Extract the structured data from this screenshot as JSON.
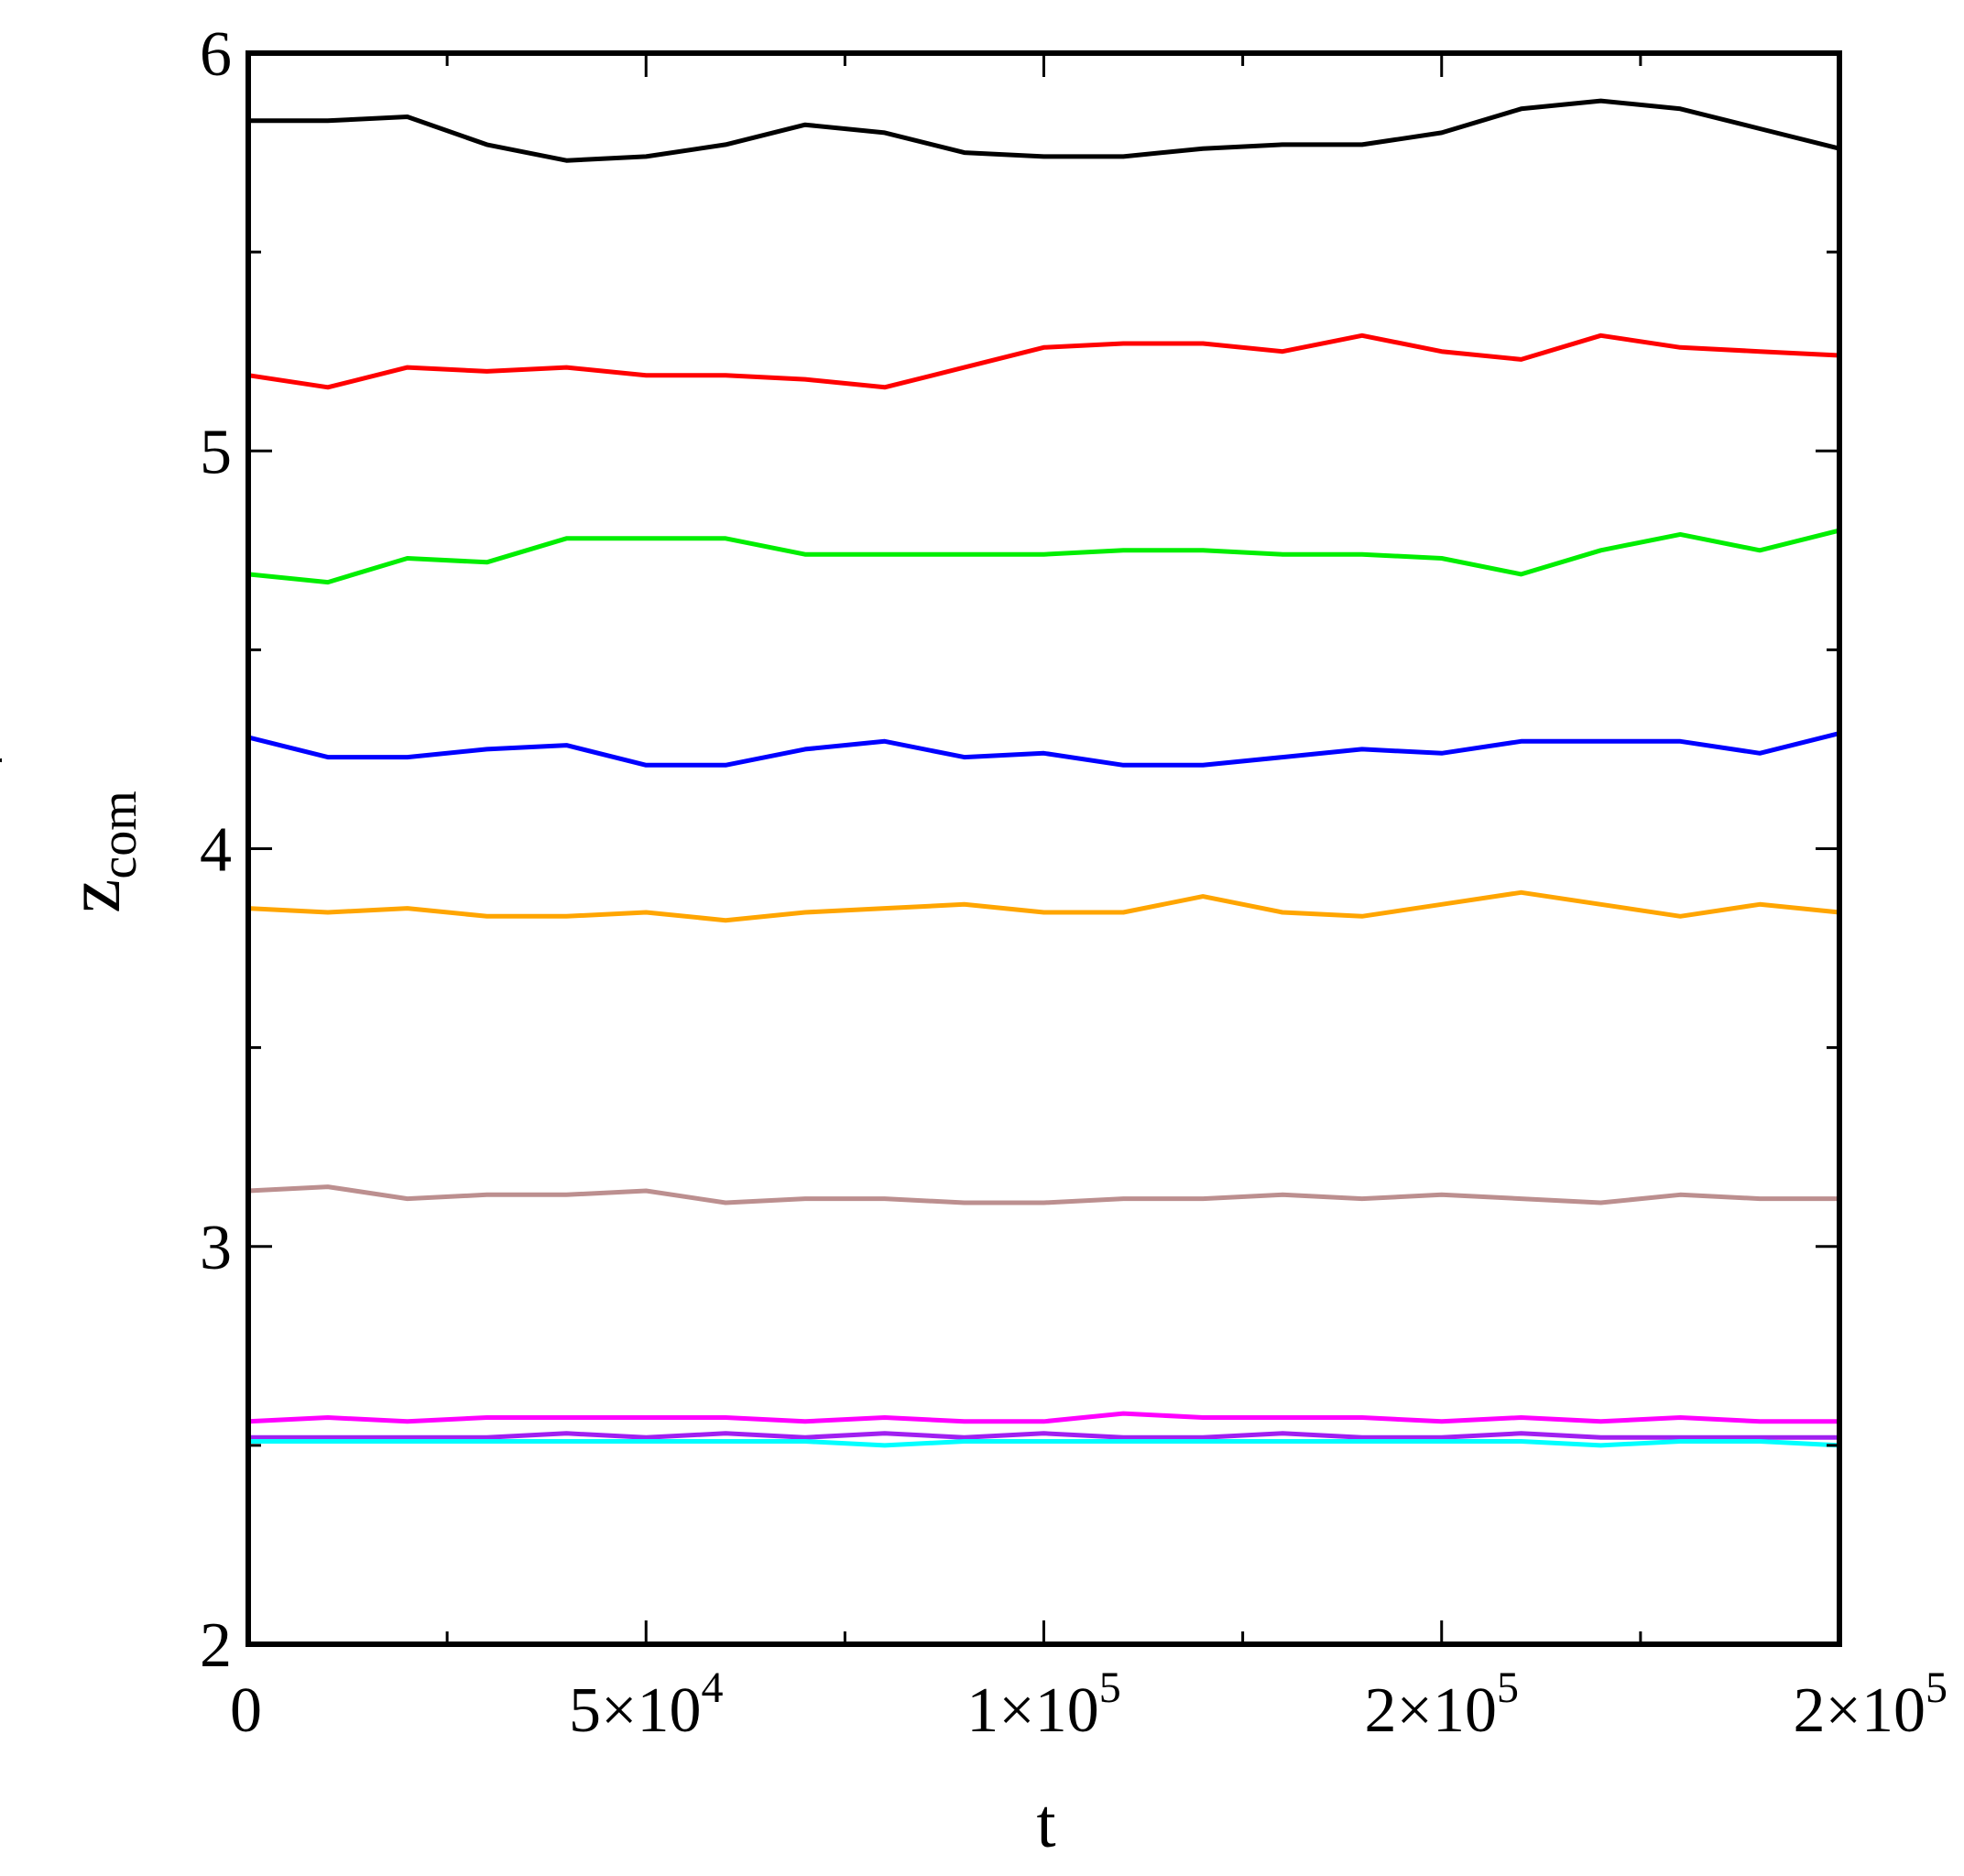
{
  "chart_data": {
    "type": "line",
    "title": "",
    "xlabel": "t",
    "ylabel": {
      "base": "z",
      "superscript": "*",
      "subscript": "com"
    },
    "xlim": [
      0,
      200000
    ],
    "ylim": [
      2,
      6
    ],
    "x_ticks": [
      {
        "value": 0,
        "base": "0",
        "exp": ""
      },
      {
        "value": 50000,
        "base": "5×10",
        "exp": "4"
      },
      {
        "value": 100000,
        "base": "1×10",
        "exp": "5"
      },
      {
        "value": 150000,
        "base": "2×10",
        "exp": "5"
      },
      {
        "value": 200000,
        "base": "2×10",
        "exp": "5"
      }
    ],
    "x_minor_ticks": [
      25000,
      75000,
      125000,
      175000
    ],
    "y_ticks": [
      {
        "value": 2,
        "label": "2"
      },
      {
        "value": 3,
        "label": "3"
      },
      {
        "value": 4,
        "label": "4"
      },
      {
        "value": 5,
        "label": "5"
      },
      {
        "value": 6,
        "label": "6"
      }
    ],
    "y_minor_ticks": [
      2.5,
      3.5,
      4.5,
      5.5
    ],
    "grid": false,
    "legend": "none",
    "x": [
      0,
      10000,
      20000,
      30000,
      40000,
      50000,
      60000,
      70000,
      80000,
      90000,
      100000,
      110000,
      120000,
      130000,
      140000,
      150000,
      160000,
      170000,
      180000,
      190000,
      200000
    ],
    "series": [
      {
        "color": "#000000",
        "values": [
          5.83,
          5.83,
          5.84,
          5.77,
          5.73,
          5.74,
          5.77,
          5.82,
          5.8,
          5.75,
          5.74,
          5.74,
          5.76,
          5.77,
          5.77,
          5.8,
          5.86,
          5.88,
          5.86,
          5.81,
          5.76
        ]
      },
      {
        "color": "#ff0000",
        "values": [
          5.19,
          5.16,
          5.21,
          5.2,
          5.21,
          5.19,
          5.19,
          5.18,
          5.16,
          5.21,
          5.26,
          5.27,
          5.27,
          5.25,
          5.29,
          5.25,
          5.23,
          5.29,
          5.26,
          5.25,
          5.24
        ]
      },
      {
        "color": "#00ee00",
        "values": [
          4.69,
          4.67,
          4.73,
          4.72,
          4.78,
          4.78,
          4.78,
          4.74,
          4.74,
          4.74,
          4.74,
          4.75,
          4.75,
          4.74,
          4.74,
          4.73,
          4.69,
          4.75,
          4.79,
          4.75,
          4.8
        ]
      },
      {
        "color": "#0000ff",
        "values": [
          4.28,
          4.23,
          4.23,
          4.25,
          4.26,
          4.21,
          4.21,
          4.25,
          4.27,
          4.23,
          4.24,
          4.21,
          4.21,
          4.23,
          4.25,
          4.24,
          4.27,
          4.27,
          4.27,
          4.24,
          4.29
        ]
      },
      {
        "color": "#ffa500",
        "values": [
          3.85,
          3.84,
          3.85,
          3.83,
          3.83,
          3.84,
          3.82,
          3.84,
          3.85,
          3.86,
          3.84,
          3.84,
          3.88,
          3.84,
          3.83,
          3.86,
          3.89,
          3.86,
          3.83,
          3.86,
          3.84
        ]
      },
      {
        "color": "#bc8f8f",
        "values": [
          3.14,
          3.15,
          3.12,
          3.13,
          3.13,
          3.14,
          3.11,
          3.12,
          3.12,
          3.11,
          3.11,
          3.12,
          3.12,
          3.13,
          3.12,
          3.13,
          3.12,
          3.11,
          3.13,
          3.12,
          3.12
        ]
      },
      {
        "color": "#ff00ff",
        "values": [
          2.56,
          2.57,
          2.56,
          2.57,
          2.57,
          2.57,
          2.57,
          2.56,
          2.57,
          2.56,
          2.56,
          2.58,
          2.57,
          2.57,
          2.57,
          2.56,
          2.57,
          2.56,
          2.57,
          2.56,
          2.56
        ]
      },
      {
        "color": "#a020f0",
        "values": [
          2.52,
          2.52,
          2.52,
          2.52,
          2.53,
          2.52,
          2.53,
          2.52,
          2.53,
          2.52,
          2.53,
          2.52,
          2.52,
          2.53,
          2.52,
          2.52,
          2.53,
          2.52,
          2.52,
          2.52,
          2.52
        ]
      },
      {
        "color": "#00ffff",
        "values": [
          2.51,
          2.51,
          2.51,
          2.51,
          2.51,
          2.51,
          2.51,
          2.51,
          2.5,
          2.51,
          2.51,
          2.51,
          2.51,
          2.51,
          2.51,
          2.51,
          2.51,
          2.5,
          2.51,
          2.51,
          2.5
        ]
      }
    ]
  }
}
